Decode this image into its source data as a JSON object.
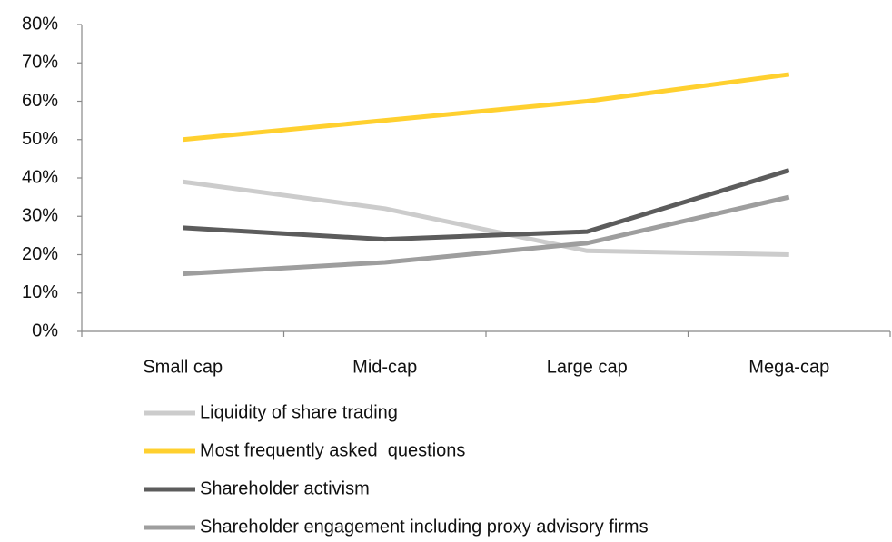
{
  "chart_data": {
    "type": "line",
    "categories": [
      "Small cap",
      "Mid-cap",
      "Large cap",
      "Mega-cap"
    ],
    "series": [
      {
        "name": "Liquidity of share trading",
        "color": "#cccccc",
        "values": [
          39,
          32,
          21,
          20
        ]
      },
      {
        "name": "Most frequently asked  questions",
        "color": "#ffd02f",
        "values": [
          50,
          55,
          60,
          67
        ]
      },
      {
        "name": "Shareholder activism",
        "color": "#5c5c5c",
        "values": [
          27,
          24,
          26,
          42
        ]
      },
      {
        "name": "Shareholder engagement including proxy advisory firms",
        "color": "#9e9e9e",
        "values": [
          15,
          18,
          23,
          35
        ]
      }
    ],
    "ylim": [
      0,
      80
    ],
    "yticks": [
      {
        "value": 0,
        "label": "0%"
      },
      {
        "value": 10,
        "label": "10%"
      },
      {
        "value": 20,
        "label": "20%"
      },
      {
        "value": 30,
        "label": "30%"
      },
      {
        "value": 40,
        "label": "40%"
      },
      {
        "value": 50,
        "label": "50%"
      },
      {
        "value": 60,
        "label": "60%"
      },
      {
        "value": 70,
        "label": "70%"
      },
      {
        "value": 80,
        "label": "80%"
      }
    ],
    "grid": false
  }
}
